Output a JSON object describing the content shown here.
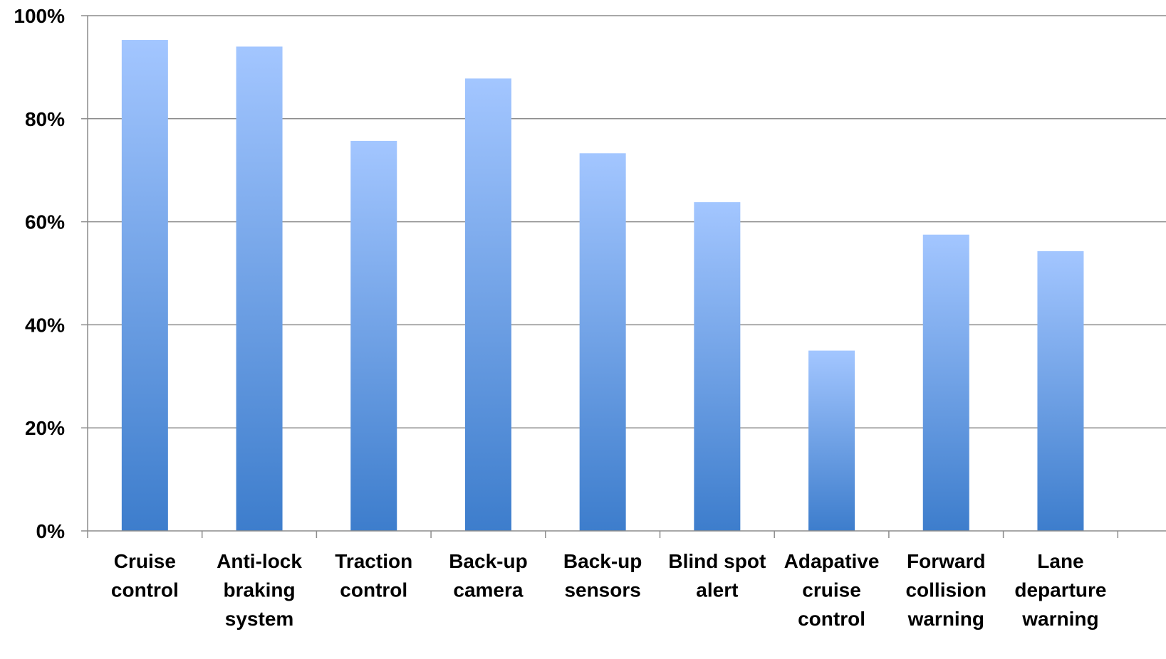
{
  "chart_data": {
    "type": "bar",
    "title": "",
    "xlabel": "",
    "ylabel": "",
    "ylim": [
      0,
      100
    ],
    "yticks": [
      0,
      20,
      40,
      60,
      80,
      100
    ],
    "ytick_labels": [
      "0%",
      "20%",
      "40%",
      "60%",
      "80%",
      "100%"
    ],
    "grid": true,
    "legend": "none",
    "categories": [
      [
        "Cruise",
        "control"
      ],
      [
        "Anti-lock",
        "braking",
        "system"
      ],
      [
        "Traction",
        "control"
      ],
      [
        "Back-up",
        "camera"
      ],
      [
        "Back-up",
        "sensors"
      ],
      [
        "Blind spot",
        "alert"
      ],
      [
        "Adapative",
        "cruise",
        "control"
      ],
      [
        "Forward",
        "collision",
        "warning"
      ],
      [
        "Lane",
        "departure",
        "warning"
      ]
    ],
    "values": [
      95.3,
      94,
      75.7,
      87.8,
      73.3,
      63.8,
      35,
      57.5,
      54.3
    ],
    "colors": {
      "bar_top": "#a3c6ff",
      "bar_bottom": "#3d7dcc",
      "grid": "#8c8c8c",
      "axis": "#8c8c8c"
    }
  }
}
